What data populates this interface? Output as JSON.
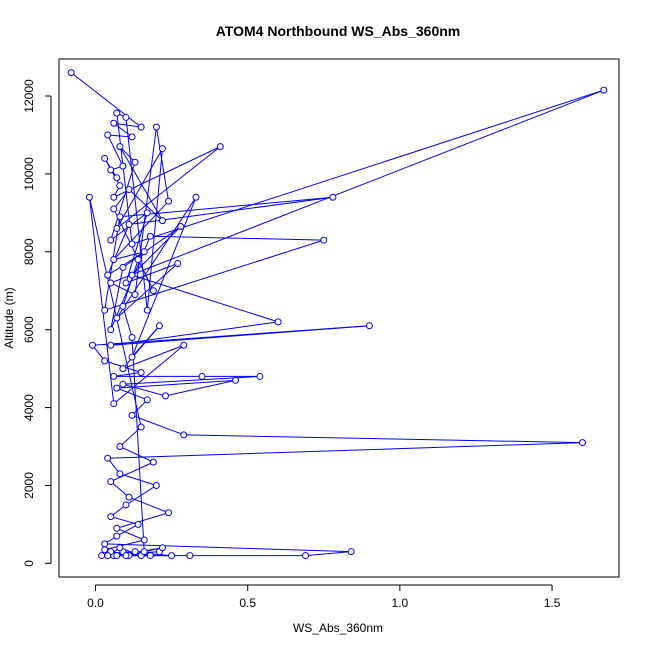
{
  "chart_data": {
    "type": "line",
    "title": "ATOM4 Northbound WS_Abs_360nm",
    "xlabel": "WS_Abs_360nm",
    "ylabel": "Altitude (m)",
    "xlim": [
      -0.12,
      1.72
    ],
    "ylim": [
      -350,
      12950
    ],
    "x_ticks": [
      0.0,
      0.5,
      1.0,
      1.5
    ],
    "x_tick_labels": [
      "0.0",
      "0.5",
      "1.0",
      "1.5"
    ],
    "y_ticks": [
      0,
      2000,
      4000,
      6000,
      8000,
      10000,
      12000
    ],
    "y_tick_labels": [
      "0",
      "2000",
      "4000",
      "6000",
      "8000",
      "10000",
      "12000"
    ],
    "grid": false,
    "legend": "none",
    "series_color": "#0000FF",
    "marker": "open-circle",
    "points": [
      [
        -0.08,
        12600
      ],
      [
        0.15,
        11200
      ],
      [
        0.06,
        11300
      ],
      [
        0.12,
        10950
      ],
      [
        0.04,
        11000
      ],
      [
        0.09,
        10200
      ],
      [
        0.05,
        10100
      ],
      [
        0.07,
        9900
      ],
      [
        0.03,
        10400
      ],
      [
        0.08,
        9700
      ],
      [
        0.06,
        9400
      ],
      [
        0.41,
        10700
      ],
      [
        0.07,
        8600
      ],
      [
        0.22,
        10650
      ],
      [
        0.17,
        6500
      ],
      [
        0.1,
        11450
      ],
      [
        0.07,
        11560
      ],
      [
        0.12,
        8200
      ],
      [
        1.67,
        12150
      ],
      [
        0.05,
        7200
      ],
      [
        0.13,
        6900
      ],
      [
        0.2,
        11200
      ],
      [
        0.24,
        9300
      ],
      [
        0.06,
        7800
      ],
      [
        0.16,
        8000
      ],
      [
        0.04,
        7400
      ],
      [
        0.11,
        8700
      ],
      [
        0.78,
        9400
      ],
      [
        0.08,
        8900
      ],
      [
        0.03,
        6500
      ],
      [
        0.75,
        8300
      ],
      [
        0.18,
        8400
      ],
      [
        0.05,
        6000
      ],
      [
        0.09,
        7600
      ],
      [
        0.28,
        8650
      ],
      [
        0.12,
        7400
      ],
      [
        0.6,
        6200
      ],
      [
        0.05,
        5600
      ],
      [
        0.9,
        6100
      ],
      [
        -0.01,
        5600
      ],
      [
        0.03,
        5200
      ],
      [
        0.15,
        4900
      ],
      [
        0.06,
        4800
      ],
      [
        0.35,
        4800
      ],
      [
        0.54,
        4800
      ],
      [
        0.09,
        4600
      ],
      [
        0.23,
        4300
      ],
      [
        0.46,
        4700
      ],
      [
        0.07,
        4500
      ],
      [
        0.17,
        4200
      ],
      [
        0.12,
        3800
      ],
      [
        0.29,
        3300
      ],
      [
        1.6,
        3100
      ],
      [
        0.04,
        2700
      ],
      [
        0.08,
        2300
      ],
      [
        0.2,
        2000
      ],
      [
        0.1,
        1500
      ],
      [
        0.05,
        1200
      ],
      [
        0.14,
        1000
      ],
      [
        0.07,
        700
      ],
      [
        0.03,
        500
      ],
      [
        0.84,
        300
      ],
      [
        0.69,
        200
      ],
      [
        0.31,
        200
      ],
      [
        0.06,
        200
      ],
      [
        0.21,
        300
      ],
      [
        0.02,
        200
      ],
      [
        0.18,
        200
      ],
      [
        0.09,
        300
      ],
      [
        0.25,
        200
      ],
      [
        0.11,
        200
      ],
      [
        0.05,
        300
      ],
      [
        0.15,
        200
      ],
      [
        0.08,
        400
      ],
      [
        0.04,
        200
      ],
      [
        0.13,
        300
      ],
      [
        0.07,
        200
      ],
      [
        0.22,
        400
      ],
      [
        0.1,
        200
      ],
      [
        0.16,
        300
      ],
      [
        0.12,
        5800
      ],
      [
        0.09,
        6600
      ],
      [
        0.14,
        7800
      ],
      [
        0.19,
        7000
      ],
      [
        0.06,
        9100
      ],
      [
        0.11,
        9600
      ],
      [
        0.22,
        8800
      ],
      [
        0.08,
        10700
      ],
      [
        0.13,
        10300
      ],
      [
        0.05,
        8300
      ],
      [
        0.17,
        9000
      ],
      [
        0.1,
        7200
      ],
      [
        0.27,
        7700
      ],
      [
        0.07,
        6300
      ],
      [
        0.33,
        9400
      ],
      [
        0.12,
        5300
      ],
      [
        0.21,
        6100
      ],
      [
        0.09,
        5000
      ],
      [
        0.29,
        5600
      ],
      [
        0.06,
        4100
      ],
      [
        -0.02,
        9400
      ],
      [
        0.15,
        3500
      ],
      [
        0.08,
        3000
      ],
      [
        0.19,
        2600
      ],
      [
        0.05,
        2100
      ],
      [
        0.11,
        1700
      ],
      [
        0.24,
        1300
      ],
      [
        0.07,
        900
      ],
      [
        0.16,
        600
      ],
      [
        0.03,
        350
      ]
    ]
  }
}
